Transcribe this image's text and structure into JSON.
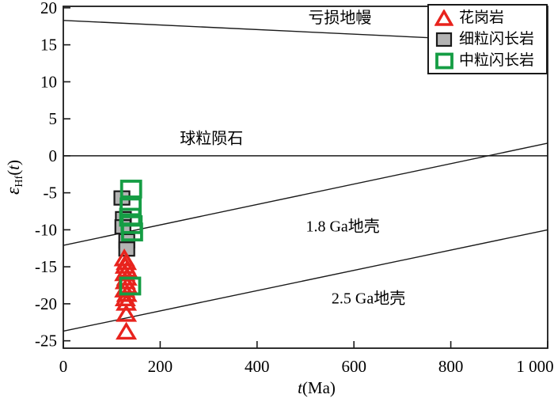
{
  "figure": {
    "background": "#ffffff",
    "frame_color": "#1a1a1a"
  },
  "legend": {
    "items": [
      {
        "label": "花岗岩",
        "marker": "triangle-open",
        "color": "#e8231d"
      },
      {
        "label": "细粒闪长岩",
        "marker": "square-filled",
        "fill": "#b3b3b3",
        "border": "#1a1a1a"
      },
      {
        "label": "中粒闪长岩",
        "marker": "square-open",
        "color": "#159d44"
      }
    ]
  },
  "chart_data": {
    "type": "scatter",
    "title": "",
    "xlabel_parts": [
      "t",
      "(Ma)"
    ],
    "ylabel_parts": [
      "ε",
      "Hf",
      "(",
      "t",
      ")"
    ],
    "xlim": [
      0,
      1000
    ],
    "ylim": [
      -26,
      20.2
    ],
    "x_ticks": [
      0,
      200,
      400,
      600,
      800,
      1000
    ],
    "x_tick_labels": [
      "0",
      "200",
      "400",
      "600",
      "800",
      "1 000"
    ],
    "y_ticks": [
      20,
      15,
      10,
      5,
      0,
      -5,
      -10,
      -15,
      -20,
      -25
    ],
    "reference_lines": [
      {
        "name": "depleted-mantle-line",
        "label": "亏损地幔",
        "from": [
          0,
          18.3
        ],
        "to": [
          1000,
          15.2
        ]
      },
      {
        "name": "chondrite-line",
        "label": "球粒陨石",
        "from": [
          0,
          0
        ],
        "to": [
          1000,
          0
        ]
      },
      {
        "name": "crust-1.8ga-line",
        "label": "1.8 Ga地壳",
        "from": [
          0,
          -12.1
        ],
        "to": [
          1000,
          1.7
        ]
      },
      {
        "name": "crust-2.5ga-line",
        "label": "2.5 Ga地壳",
        "from": [
          0,
          -23.7
        ],
        "to": [
          1000,
          -10.0
        ]
      }
    ],
    "annotations": [
      {
        "name": "depleted-mantle-label",
        "text": "亏损地幔",
        "x": 571,
        "y": 18.6
      },
      {
        "name": "chondrite-label",
        "text": "球粒陨石",
        "x": 306,
        "y": 2.3
      },
      {
        "name": "crust-1.8ga-label",
        "text": "1.8 Ga地壳",
        "x": 577,
        "y": -9.6
      },
      {
        "name": "crust-2.5ga-label",
        "text": "2.5 Ga地壳",
        "x": 630,
        "y": -19.3
      }
    ],
    "series": [
      {
        "name": "细粒闪长岩",
        "marker": "square-filled",
        "fill": "#b3b3b3",
        "border": "#1a1a1a",
        "points": [
          [
            121,
            -5.7
          ],
          [
            124,
            -8.5
          ],
          [
            123,
            -9.6
          ],
          [
            131,
            -11.5
          ],
          [
            131,
            -12.6
          ]
        ]
      },
      {
        "name": "花岗岩",
        "marker": "triangle-open",
        "color": "#e8231d",
        "points": [
          [
            126,
            -13.9
          ],
          [
            130,
            -14.4
          ],
          [
            128,
            -14.9
          ],
          [
            132,
            -15.4
          ],
          [
            127,
            -15.9
          ],
          [
            131,
            -16.5
          ],
          [
            128,
            -17.0
          ],
          [
            132,
            -17.6
          ],
          [
            127,
            -18.1
          ],
          [
            131,
            -18.7
          ],
          [
            128,
            -19.3
          ],
          [
            130,
            -19.9
          ],
          [
            130,
            -21.4
          ],
          [
            130,
            -23.8
          ]
        ]
      },
      {
        "name": "中粒闪长岩",
        "marker": "square-open",
        "color": "#159d44",
        "points": [
          [
            140,
            -4.5
          ],
          [
            139,
            -6.9
          ],
          [
            138,
            -8.3
          ],
          [
            141,
            -9.3
          ],
          [
            142,
            -10.3
          ],
          [
            138,
            -17.6
          ]
        ]
      }
    ]
  }
}
